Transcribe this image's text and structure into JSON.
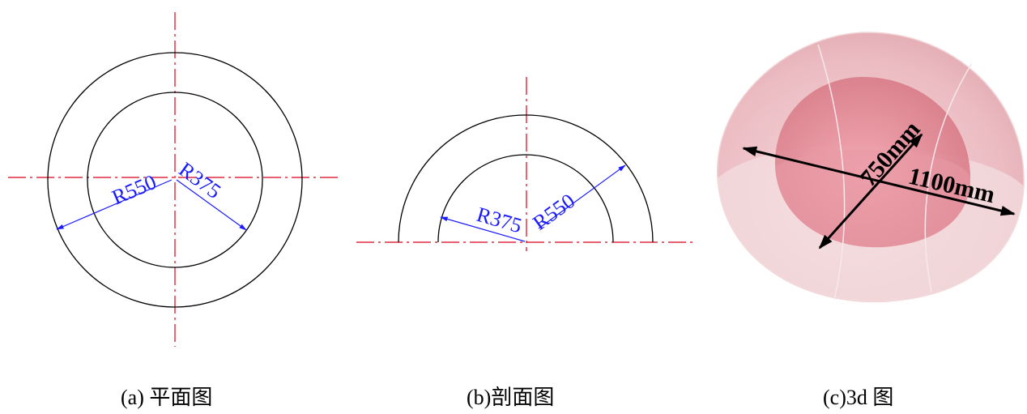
{
  "panels": {
    "plan": {
      "caption": "(a)  平面图",
      "inner_label": "R375",
      "outer_label": "R550"
    },
    "section": {
      "caption": "(b)剖面图",
      "inner_label": "R375",
      "outer_label": "R550"
    },
    "three_d": {
      "caption": "(c)3d 图",
      "inner_dim": "750mm",
      "outer_dim": "1100mm"
    }
  },
  "colors": {
    "centerline": "#d6001c",
    "dimension": "#1a1aff",
    "outline": "#000000",
    "shell": "#e8a8b0",
    "core": "#d9707f"
  }
}
